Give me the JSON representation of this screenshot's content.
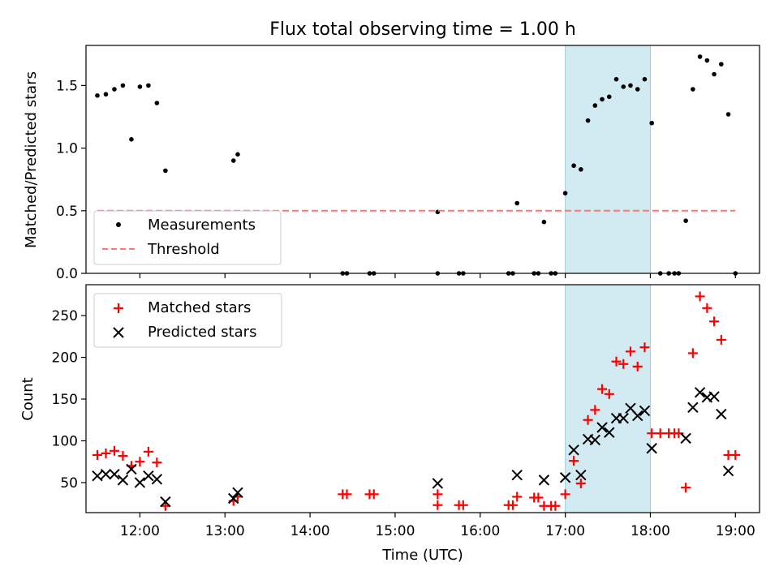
{
  "chart_data": {
    "title": "Flux total observing time = 1.00 h",
    "xlabel": "Time (UTC)",
    "xlim": [
      "11:22",
      "19:17"
    ],
    "x_ticks": [
      "12:00",
      "13:00",
      "14:00",
      "15:00",
      "16:00",
      "17:00",
      "18:00",
      "19:00"
    ],
    "shaded_span": {
      "start": "17:00",
      "end": "18:00",
      "color": "#add8e6"
    },
    "panels": [
      {
        "type": "scatter",
        "ylabel": "Matched/Predicted stars",
        "ylim": [
          0,
          1.82
        ],
        "y_ticks": [
          "0.0",
          "0.5",
          "1.0",
          "1.5"
        ],
        "legend_position": "lower-left",
        "series": [
          {
            "name": "Measurements",
            "marker": "dot",
            "color": "#000000",
            "points": [
              [
                "11:30",
                1.42
              ],
              [
                "11:36",
                1.43
              ],
              [
                "11:42",
                1.47
              ],
              [
                "11:48",
                1.5
              ],
              [
                "11:54",
                1.07
              ],
              [
                "12:00",
                1.49
              ],
              [
                "12:06",
                1.5
              ],
              [
                "12:12",
                1.36
              ],
              [
                "12:18",
                0.82
              ],
              [
                "13:06",
                0.9
              ],
              [
                "13:09",
                0.95
              ],
              [
                "14:23",
                0.0
              ],
              [
                "14:26",
                0.0
              ],
              [
                "14:42",
                0.0
              ],
              [
                "14:45",
                0.0
              ],
              [
                "15:30",
                0.49
              ],
              [
                "15:30",
                0.0
              ],
              [
                "15:45",
                0.0
              ],
              [
                "15:48",
                0.0
              ],
              [
                "16:20",
                0.0
              ],
              [
                "16:23",
                0.0
              ],
              [
                "16:26",
                0.56
              ],
              [
                "16:38",
                0.0
              ],
              [
                "16:41",
                0.0
              ],
              [
                "16:45",
                0.41
              ],
              [
                "16:50",
                0.0
              ],
              [
                "16:53",
                0.0
              ],
              [
                "17:00",
                0.64
              ],
              [
                "17:06",
                0.86
              ],
              [
                "17:11",
                0.83
              ],
              [
                "17:16",
                1.22
              ],
              [
                "17:21",
                1.34
              ],
              [
                "17:26",
                1.39
              ],
              [
                "17:31",
                1.41
              ],
              [
                "17:36",
                1.55
              ],
              [
                "17:41",
                1.49
              ],
              [
                "17:46",
                1.5
              ],
              [
                "17:51",
                1.47
              ],
              [
                "17:56",
                1.55
              ],
              [
                "18:01",
                1.2
              ],
              [
                "18:07",
                0.0
              ],
              [
                "18:13",
                0.0
              ],
              [
                "18:17",
                0.0
              ],
              [
                "18:20",
                0.0
              ],
              [
                "18:25",
                0.42
              ],
              [
                "18:30",
                1.47
              ],
              [
                "18:35",
                1.73
              ],
              [
                "18:40",
                1.7
              ],
              [
                "18:45",
                1.59
              ],
              [
                "18:50",
                1.67
              ],
              [
                "18:55",
                1.27
              ],
              [
                "19:00",
                0.0
              ]
            ]
          },
          {
            "name": "Threshold",
            "style": "dashed-line",
            "color": "#ff7777",
            "points": [
              [
                "11:30",
                0.5
              ],
              [
                "19:00",
                0.5
              ]
            ]
          }
        ]
      },
      {
        "type": "scatter",
        "ylabel": "Count",
        "ylim": [
          14,
          287
        ],
        "y_ticks": [
          "50",
          "100",
          "150",
          "200",
          "250"
        ],
        "legend_position": "upper-left",
        "series": [
          {
            "name": "Matched stars",
            "marker": "plus",
            "color": "#ff0000",
            "points": [
              [
                "11:30",
                83
              ],
              [
                "11:36",
                85
              ],
              [
                "11:42",
                88
              ],
              [
                "11:48",
                82
              ],
              [
                "11:54",
                70
              ],
              [
                "12:00",
                75
              ],
              [
                "12:06",
                87
              ],
              [
                "12:12",
                74
              ],
              [
                "12:18",
                22
              ],
              [
                "13:06",
                28
              ],
              [
                "13:09",
                33
              ],
              [
                "14:23",
                36
              ],
              [
                "14:26",
                36
              ],
              [
                "14:42",
                36
              ],
              [
                "14:45",
                36
              ],
              [
                "15:30",
                36
              ],
              [
                "15:30",
                23
              ],
              [
                "15:45",
                23
              ],
              [
                "15:48",
                23
              ],
              [
                "16:20",
                23
              ],
              [
                "16:23",
                23
              ],
              [
                "16:26",
                33
              ],
              [
                "16:38",
                32
              ],
              [
                "16:41",
                32
              ],
              [
                "16:45",
                22
              ],
              [
                "16:50",
                22
              ],
              [
                "16:53",
                22
              ],
              [
                "17:00",
                36
              ],
              [
                "17:06",
                76
              ],
              [
                "17:11",
                49
              ],
              [
                "17:16",
                125
              ],
              [
                "17:21",
                137
              ],
              [
                "17:26",
                162
              ],
              [
                "17:31",
                156
              ],
              [
                "17:36",
                195
              ],
              [
                "17:41",
                192
              ],
              [
                "17:46",
                207
              ],
              [
                "17:51",
                189
              ],
              [
                "17:56",
                212
              ],
              [
                "18:01",
                109
              ],
              [
                "18:07",
                109
              ],
              [
                "18:13",
                109
              ],
              [
                "18:17",
                109
              ],
              [
                "18:20",
                109
              ],
              [
                "18:25",
                44
              ],
              [
                "18:30",
                205
              ],
              [
                "18:35",
                273
              ],
              [
                "18:40",
                259
              ],
              [
                "18:45",
                243
              ],
              [
                "18:50",
                221
              ],
              [
                "18:55",
                83
              ],
              [
                "19:00",
                83
              ]
            ]
          },
          {
            "name": "Predicted stars",
            "marker": "x",
            "color": "#000000",
            "points": [
              [
                "11:30",
                58
              ],
              [
                "11:36",
                60
              ],
              [
                "11:42",
                60
              ],
              [
                "11:48",
                53
              ],
              [
                "11:54",
                66
              ],
              [
                "12:00",
                50
              ],
              [
                "12:06",
                58
              ],
              [
                "12:12",
                54
              ],
              [
                "12:18",
                27
              ],
              [
                "13:06",
                31
              ],
              [
                "13:09",
                38
              ],
              [
                "15:30",
                49
              ],
              [
                "16:26",
                59
              ],
              [
                "16:45",
                53
              ],
              [
                "17:00",
                56
              ],
              [
                "17:06",
                89
              ],
              [
                "17:11",
                59
              ],
              [
                "17:16",
                102
              ],
              [
                "17:21",
                101
              ],
              [
                "17:26",
                116
              ],
              [
                "17:31",
                110
              ],
              [
                "17:36",
                127
              ],
              [
                "17:41",
                127
              ],
              [
                "17:46",
                139
              ],
              [
                "17:51",
                130
              ],
              [
                "17:56",
                136
              ],
              [
                "18:01",
                91
              ],
              [
                "18:25",
                103
              ],
              [
                "18:30",
                140
              ],
              [
                "18:35",
                158
              ],
              [
                "18:40",
                152
              ],
              [
                "18:45",
                153
              ],
              [
                "18:50",
                132
              ],
              [
                "18:55",
                64
              ]
            ]
          }
        ]
      }
    ]
  }
}
